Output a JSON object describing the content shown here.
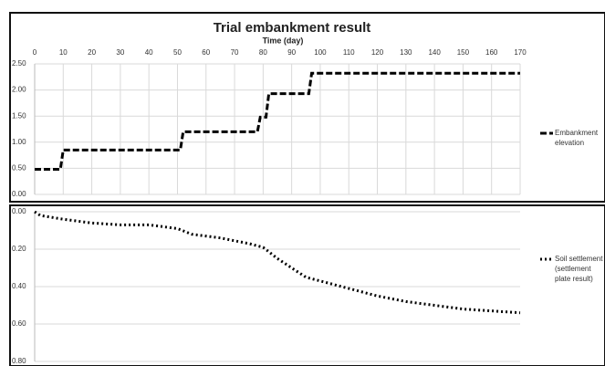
{
  "chart_data": [
    {
      "type": "line",
      "title": "Trial embankment result",
      "x_label": "Time (day)",
      "xlim": [
        0,
        170
      ],
      "xticks": [
        0,
        10,
        20,
        30,
        40,
        50,
        60,
        70,
        80,
        90,
        100,
        110,
        120,
        130,
        140,
        150,
        160,
        170
      ],
      "ylim": [
        0,
        2.5
      ],
      "yticks": [
        {
          "value": 0,
          "label": "0.00"
        },
        {
          "value": 0.5,
          "label": "0.50"
        },
        {
          "value": 1,
          "label": "1.00"
        },
        {
          "value": 1.5,
          "label": "1.50"
        },
        {
          "value": 2,
          "label": "2.00"
        },
        {
          "value": 2.5,
          "label": "2.50"
        }
      ],
      "grid": true,
      "series": [
        {
          "name": "Embankment elevation",
          "color": "#000000",
          "dash": "dashed",
          "x": [
            0,
            9,
            10,
            51,
            52,
            78,
            79,
            81,
            82,
            96,
            97,
            170
          ],
          "values": [
            0.48,
            0.48,
            0.85,
            0.85,
            1.2,
            1.2,
            1.48,
            1.48,
            1.93,
            1.93,
            2.32,
            2.32
          ]
        }
      ]
    },
    {
      "type": "line",
      "xlim": [
        0,
        170
      ],
      "ylim": [
        0,
        0.8
      ],
      "y_inverted": true,
      "yticks": [
        {
          "value": 0,
          "label": "0.00"
        },
        {
          "value": 0.2,
          "label": "0.20"
        },
        {
          "value": 0.4,
          "label": "0.40"
        },
        {
          "value": 0.6,
          "label": "0.60"
        },
        {
          "value": 0.8,
          "label": "0.80"
        }
      ],
      "grid": true,
      "series": [
        {
          "name": "Soil settlement (settlement plate result)",
          "color": "#000000",
          "dash": "dotted",
          "x": [
            0,
            2,
            10,
            20,
            30,
            40,
            50,
            55,
            65,
            75,
            80,
            85,
            90,
            95,
            100,
            110,
            120,
            130,
            140,
            150,
            160,
            170
          ],
          "values": [
            0,
            0.02,
            0.04,
            0.06,
            0.07,
            0.07,
            0.09,
            0.12,
            0.14,
            0.17,
            0.19,
            0.25,
            0.3,
            0.35,
            0.37,
            0.41,
            0.45,
            0.48,
            0.5,
            0.52,
            0.53,
            0.54
          ]
        }
      ]
    }
  ]
}
